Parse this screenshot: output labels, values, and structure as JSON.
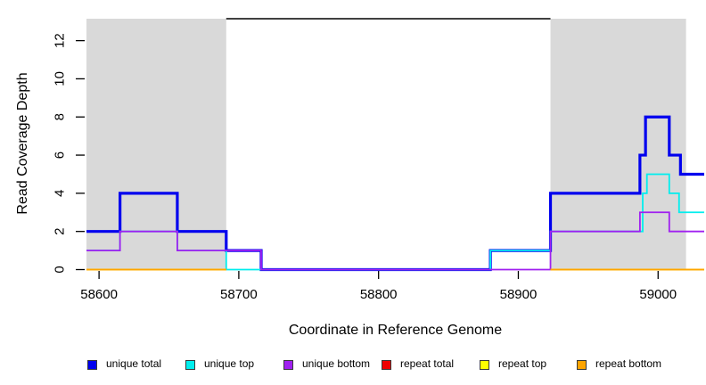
{
  "chart_data": {
    "type": "line",
    "subtype": "step-coverage-plot",
    "title": "",
    "xlabel": "Coordinate in Reference Genome",
    "ylabel": "Read Coverage Depth",
    "xlim": [
      58591,
      59033
    ],
    "ylim": [
      0,
      13.15
    ],
    "x_ticks": [
      58600,
      58700,
      58800,
      58900,
      59000
    ],
    "y_ticks": [
      0,
      2,
      4,
      6,
      8,
      10,
      12
    ],
    "grid": false,
    "region_fill": "#d9d9d9",
    "repeat_regions": [
      [
        58591,
        58691
      ],
      [
        58923,
        59020
      ]
    ],
    "annotations": {
      "top_line": {
        "from": 58691,
        "to": 58923,
        "depth": 13.15,
        "color": "#000000"
      }
    },
    "series": [
      {
        "name": "unique total",
        "color": "#0000ee",
        "width": 3.2,
        "segments": [
          [
            58591,
            58615,
            2
          ],
          [
            58615,
            58656,
            4
          ],
          [
            58656,
            58691,
            2
          ],
          [
            58691,
            58716,
            1
          ],
          [
            58716,
            58880,
            0
          ],
          [
            58880,
            58923,
            1
          ],
          [
            58923,
            58987,
            4
          ],
          [
            58987,
            58991,
            6
          ],
          [
            58991,
            59008,
            8
          ],
          [
            59008,
            59016,
            6
          ],
          [
            59016,
            59033,
            5
          ]
        ]
      },
      {
        "name": "unique top",
        "color": "#00eeee",
        "width": 1.8,
        "segments": [
          [
            58591,
            58615,
            1
          ],
          [
            58615,
            58656,
            2
          ],
          [
            58656,
            58691,
            1
          ],
          [
            58691,
            58880,
            0
          ],
          [
            58880,
            58923,
            1
          ],
          [
            58923,
            58989,
            2
          ],
          [
            58989,
            58992,
            4
          ],
          [
            58992,
            59008,
            5
          ],
          [
            59008,
            59015,
            4
          ],
          [
            59015,
            59033,
            3
          ]
        ]
      },
      {
        "name": "unique bottom",
        "color": "#a020f0",
        "width": 1.8,
        "segments": [
          [
            58591,
            58615,
            1
          ],
          [
            58615,
            58656,
            2
          ],
          [
            58656,
            58716,
            1
          ],
          [
            58716,
            58923,
            0
          ],
          [
            58923,
            58987,
            2
          ],
          [
            58987,
            59008,
            3
          ],
          [
            59008,
            59033,
            2
          ]
        ]
      },
      {
        "name": "repeat total",
        "color": "#ee0000",
        "width": 1.8,
        "segments": [
          [
            58591,
            58691,
            0
          ],
          [
            58923,
            59033,
            0
          ]
        ]
      },
      {
        "name": "repeat top",
        "color": "#ffff00",
        "width": 1.8,
        "segments": [
          [
            58591,
            58691,
            0
          ],
          [
            58923,
            59033,
            0
          ]
        ]
      },
      {
        "name": "repeat bottom",
        "color": "#ffa500",
        "width": 1.8,
        "segments": [
          [
            58591,
            58691,
            0
          ],
          [
            58923,
            59033,
            0
          ]
        ]
      }
    ],
    "legend_position": "bottom"
  },
  "legend": {
    "items": [
      {
        "label": "unique total",
        "color": "#0000ee"
      },
      {
        "label": "unique top",
        "color": "#00eeee"
      },
      {
        "label": "unique bottom",
        "color": "#a020f0"
      },
      {
        "label": "repeat total",
        "color": "#ee0000"
      },
      {
        "label": "repeat top",
        "color": "#ffff00"
      },
      {
        "label": "repeat bottom",
        "color": "#ffa500"
      }
    ]
  }
}
